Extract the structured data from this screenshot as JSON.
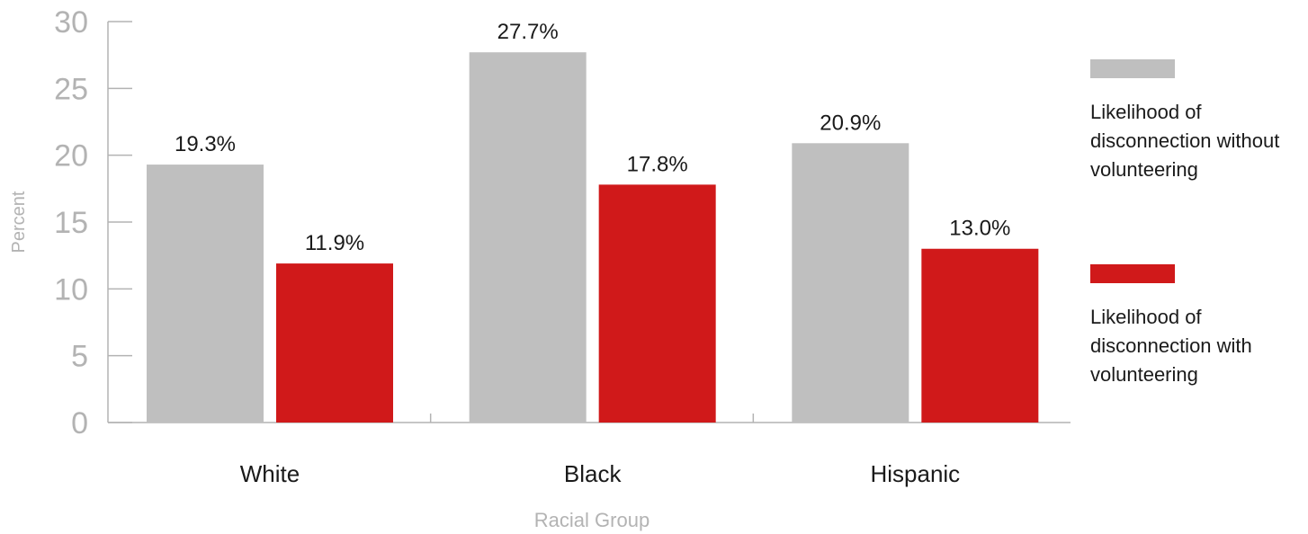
{
  "chart_data": {
    "type": "bar",
    "categories": [
      "White",
      "Black",
      "Hispanic"
    ],
    "series": [
      {
        "name": "Likelihood of disconnection without volunteering",
        "values": [
          19.3,
          27.7,
          20.9
        ],
        "labels": [
          "19.3%",
          "27.7%",
          "20.9%"
        ],
        "color": "#bfbfbf"
      },
      {
        "name": "Likelihood of disconnection with volunteering",
        "values": [
          11.9,
          17.8,
          13.0
        ],
        "labels": [
          "11.9%",
          "17.8%",
          "13.0%"
        ],
        "color": "#d0191a"
      }
    ],
    "xlabel": "Racial Group",
    "ylabel": "Percent",
    "ylim": [
      0,
      30
    ],
    "yticks": [
      "0",
      "5",
      "10",
      "15",
      "20",
      "25",
      "30"
    ],
    "grid": false,
    "legend_position": "right"
  },
  "legend": {
    "items": [
      {
        "label": "Likelihood of disconnection without volunteering",
        "color": "#bfbfbf"
      },
      {
        "label": "Likelihood of disconnection with volunteering",
        "color": "#d0191a"
      }
    ]
  }
}
